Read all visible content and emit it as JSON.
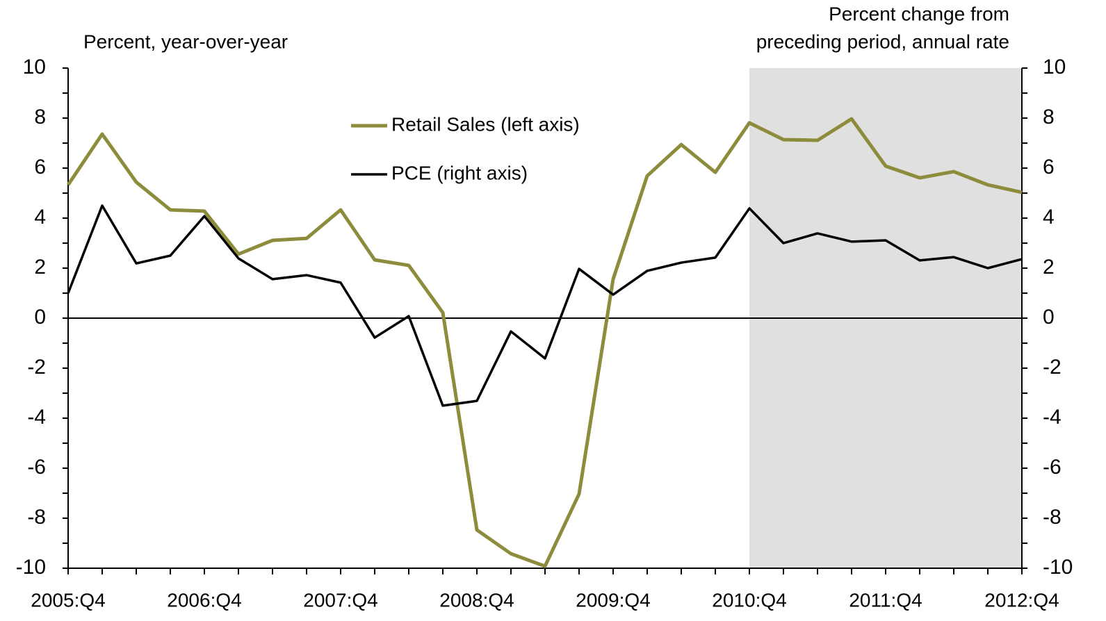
{
  "chart_data": {
    "type": "line",
    "ylabel": "Percent, year-over-year",
    "y2label": [
      "Percent change from",
      "preceding period, annual rate"
    ],
    "categories": [
      "2005:Q4",
      null,
      null,
      null,
      "2006:Q4",
      null,
      null,
      null,
      "2007:Q4",
      null,
      null,
      null,
      "2008:Q4",
      null,
      null,
      null,
      "2009:Q4",
      null,
      null,
      null,
      "2010:Q4",
      null,
      null,
      null,
      "2011:Q4",
      null,
      null,
      null,
      "2012:Q4"
    ],
    "series": [
      {
        "name": "Retail Sales (left axis)",
        "color": "#8c8c3c",
        "axis": "y",
        "values": [
          5.33,
          7.36,
          5.44,
          4.33,
          4.28,
          2.56,
          3.11,
          3.19,
          4.33,
          2.33,
          2.11,
          0.22,
          -8.47,
          -9.42,
          -9.92,
          -7.03,
          1.56,
          5.69,
          6.94,
          5.83,
          7.81,
          7.14,
          7.11,
          7.97,
          6.08,
          5.61,
          5.86,
          5.33,
          5.03
        ]
      },
      {
        "name": "PCE (right axis)",
        "color": "#000000",
        "axis": "y2",
        "values": [
          1.0,
          4.5,
          2.19,
          2.5,
          4.08,
          2.39,
          1.56,
          1.72,
          1.42,
          -0.78,
          0.08,
          -3.5,
          -3.31,
          -0.53,
          -1.61,
          1.97,
          0.94,
          1.89,
          2.22,
          2.42,
          4.39,
          3.0,
          3.39,
          3.06,
          3.11,
          2.31,
          2.44,
          2.0,
          2.36
        ]
      }
    ],
    "ylim": [
      -10,
      10
    ],
    "yticks": [
      -10,
      -8,
      -6,
      -4,
      -2,
      0,
      2,
      4,
      6,
      8,
      10
    ],
    "y2lim": [
      -10,
      10
    ],
    "y2ticks": [
      -10,
      -8,
      -6,
      -4,
      -2,
      0,
      2,
      4,
      6,
      8,
      10
    ],
    "shaded_from": "2010:Q4",
    "shade_color": "#e0e0e0"
  }
}
